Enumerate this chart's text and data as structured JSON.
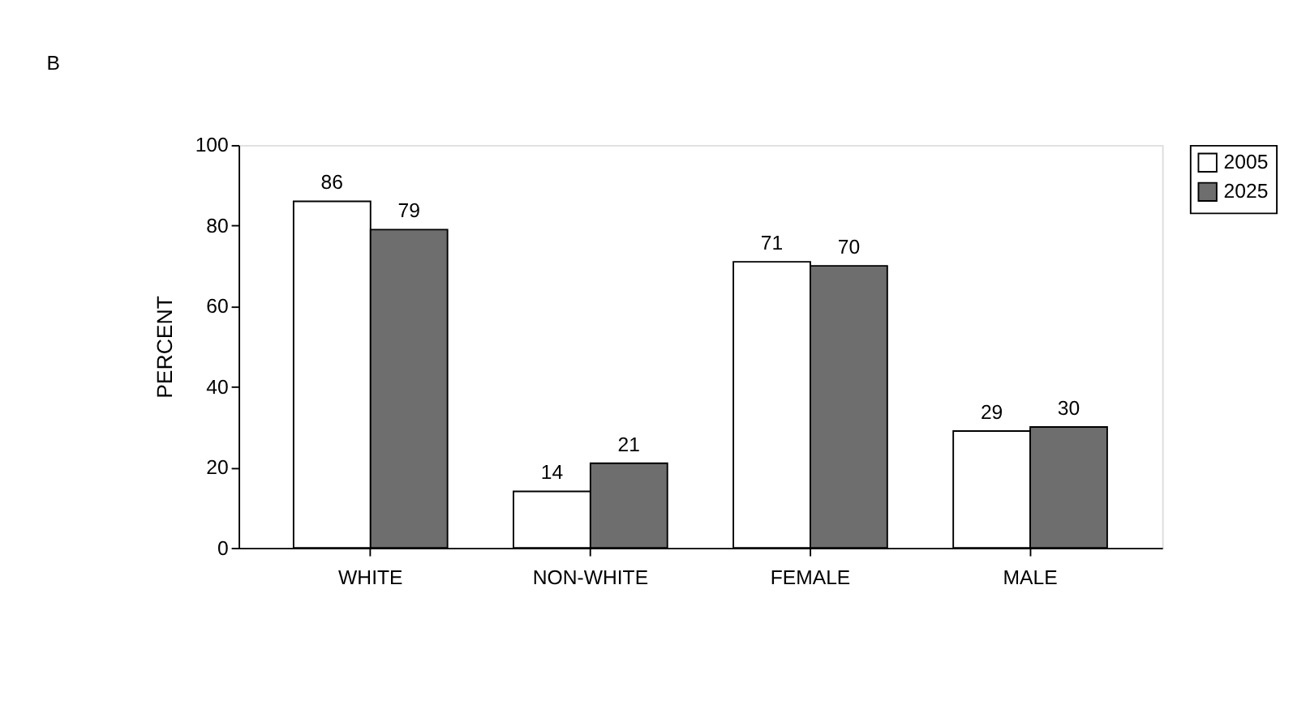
{
  "chart_data": {
    "type": "bar",
    "title": "B",
    "ylabel": "PERCENT",
    "categories": [
      "WHITE",
      "NON-WHITE",
      "FEMALE",
      "MALE"
    ],
    "series": [
      {
        "name": "2005",
        "color": "#ffffff",
        "values": [
          86,
          14,
          71,
          29
        ]
      },
      {
        "name": "2025",
        "color": "#6e6e6e",
        "values": [
          79,
          21,
          70,
          30
        ]
      }
    ],
    "ylim": [
      0,
      100
    ],
    "yticks": [
      0,
      20,
      40,
      60,
      80,
      100
    ],
    "grid": false,
    "legend": "right",
    "data_labels": true
  }
}
